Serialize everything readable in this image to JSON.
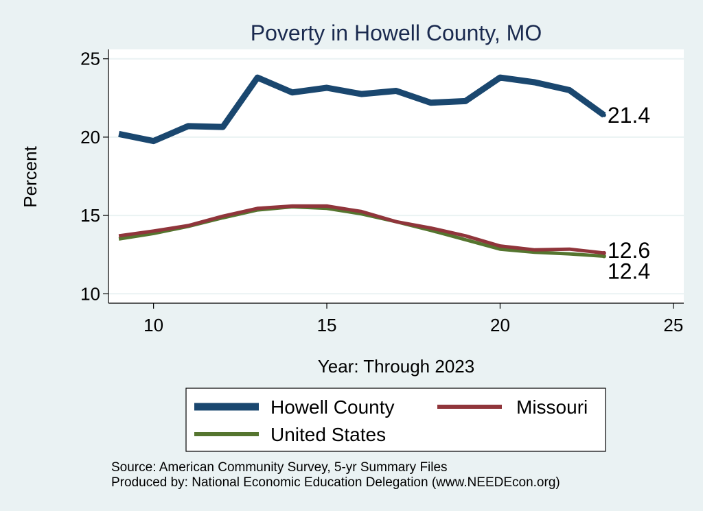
{
  "chart_data": {
    "type": "line",
    "title": "Poverty in Howell County, MO",
    "xlabel": "Year: Through 2023",
    "ylabel": "Percent",
    "xlim": [
      8.7,
      25.3
    ],
    "ylim": [
      9.4,
      25.6
    ],
    "xticks": [
      10,
      15,
      20,
      25
    ],
    "yticks": [
      10,
      15,
      20,
      25
    ],
    "grid": true,
    "legend_position": "bottom",
    "x": [
      9,
      10,
      11,
      12,
      13,
      14,
      15,
      16,
      17,
      18,
      19,
      20,
      21,
      22,
      23
    ],
    "series": [
      {
        "name": "Howell County",
        "color": "#1a476f",
        "width": "thick",
        "values": [
          20.2,
          19.75,
          20.7,
          20.65,
          23.8,
          22.85,
          23.15,
          22.75,
          22.95,
          22.2,
          22.3,
          23.8,
          23.5,
          23.0,
          21.4
        ],
        "end_label": "21.4"
      },
      {
        "name": "Missouri",
        "color": "#90353b",
        "width": "medium",
        "values": [
          13.7,
          14.0,
          14.35,
          14.95,
          15.45,
          15.6,
          15.6,
          15.25,
          14.6,
          14.2,
          13.7,
          13.05,
          12.8,
          12.85,
          12.6
        ],
        "end_label": "12.6"
      },
      {
        "name": "United States",
        "color": "#55752f",
        "width": "medium",
        "values": [
          13.5,
          13.85,
          14.3,
          14.85,
          15.35,
          15.55,
          15.45,
          15.1,
          14.6,
          14.05,
          13.45,
          12.85,
          12.65,
          12.55,
          12.4
        ],
        "end_label": "12.4"
      }
    ]
  },
  "footer": {
    "source": "Source: American Community Survey, 5-yr Summary Files",
    "produced_by": "Produced by: National Economic Education Delegation (www.NEEDEcon.org)"
  }
}
